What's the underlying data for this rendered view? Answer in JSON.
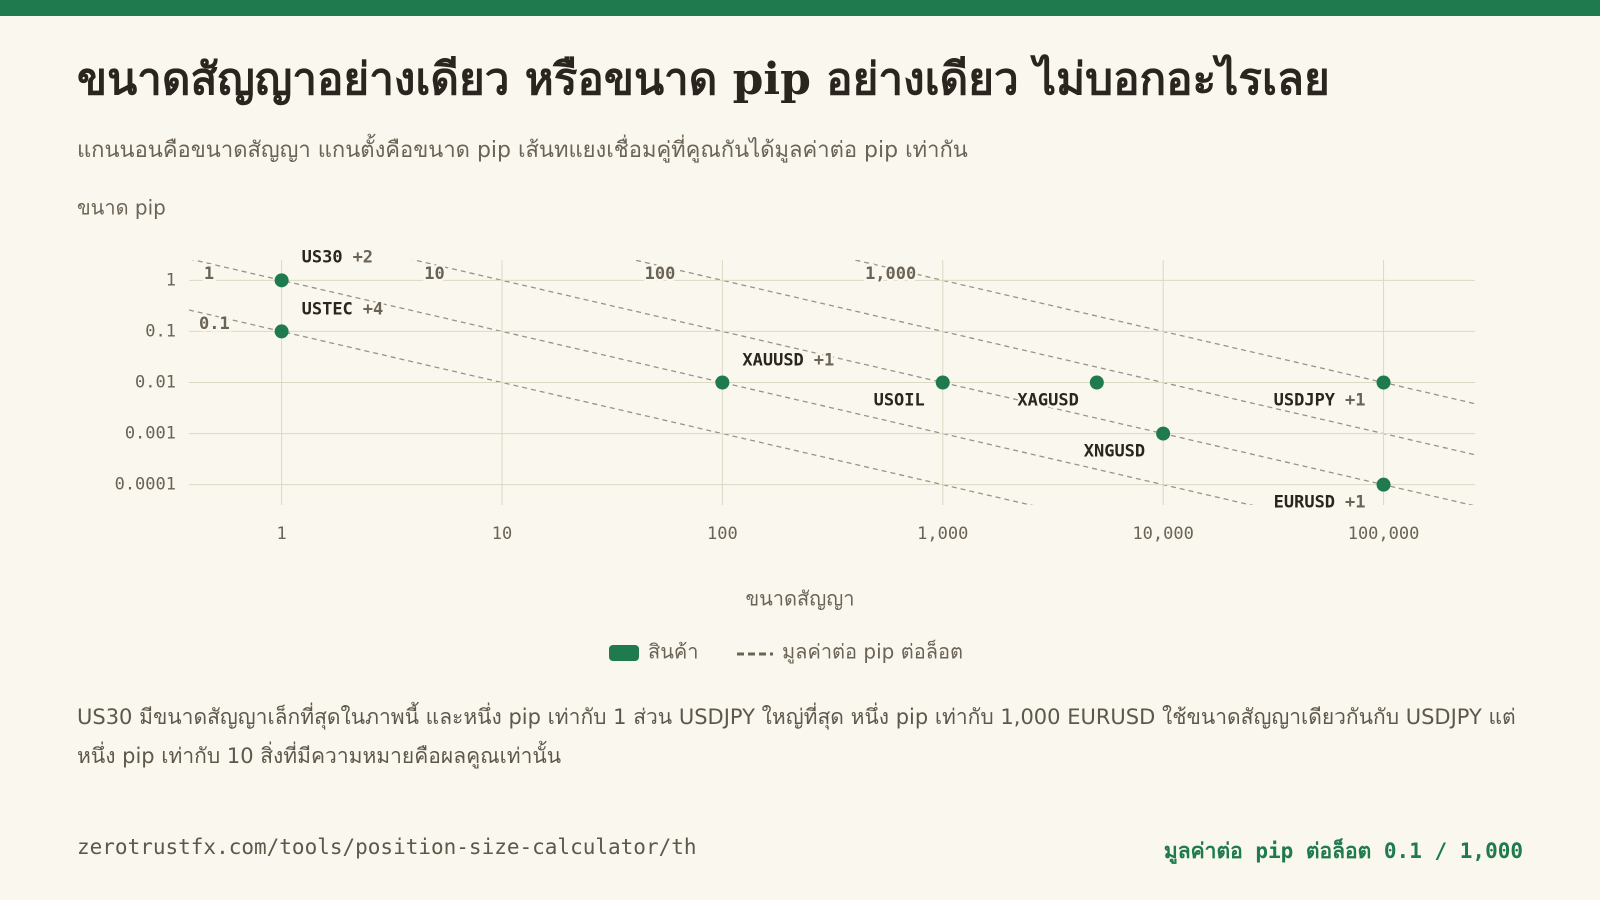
{
  "title": "ขนาดสัญญาอย่างเดียว หรือขนาด pip อย่างเดียว ไม่บอกอะไรเลย",
  "subtitle": "แกนนอนคือขนาดสัญญา แกนตั้งคือขนาด pip เส้นทแยงเชื่อมคู่ที่คูณกันได้มูลค่าต่อ pip เท่ากัน",
  "chart_data": {
    "type": "scatter",
    "log_x": true,
    "log_y": true,
    "grid": true,
    "y_label": "ขนาด pip",
    "x_label": "ขนาดสัญญา",
    "xlim": [
      0.38,
      260000
    ],
    "ylim": [
      4e-05,
      2.5
    ],
    "xticks": [
      1,
      10,
      100,
      {
        "value": 1000,
        "label": "1,000"
      },
      {
        "value": 10000,
        "label": "10,000"
      },
      {
        "value": 100000,
        "label": "100,000"
      }
    ],
    "yticks": [
      1,
      0.1,
      0.01,
      0.001,
      0.0001
    ],
    "series": [
      {
        "name": "สินค้า",
        "color": "#1f7a4d",
        "labels": [
          "US30",
          "USTEC",
          "XAUUSD",
          "USOIL",
          "XAGUSD",
          "XNGUSD",
          "USDJPY",
          "EURUSD"
        ],
        "badges": [
          "+2",
          "+4",
          "+1",
          null,
          null,
          null,
          "+1",
          "+1"
        ],
        "x": [
          1,
          1,
          100,
          1000,
          5000,
          10000,
          100000,
          100000
        ],
        "values": [
          1,
          0.1,
          0.01,
          0.01,
          0.01,
          0.001,
          0.01,
          0.0001
        ]
      }
    ],
    "reference_lines": {
      "name": "มูลค่าต่อ pip ต่อล็อต",
      "color": "#999488",
      "values": [
        0.1,
        1,
        10,
        100,
        1000
      ],
      "value_labels": [
        "0.1",
        "1",
        "10",
        "100",
        "1,000"
      ]
    }
  },
  "note": "US30 มีขนาดสัญญาเล็กที่สุดในภาพนี้ และหนึ่ง pip เท่ากับ 1 ส่วน USDJPY ใหญ่ที่สุด หนึ่ง pip เท่ากับ 1,000 EURUSD ใช้ขนาดสัญญาเดียวกันกับ USDJPY แต่หนึ่ง pip เท่ากับ 10 สิ่งที่มีความหมายคือผลคูณเท่านั้น",
  "footer": {
    "url": "zerotrustfx.com/tools/position-size-calculator/th",
    "summary": "มูลค่าต่อ pip ต่อล็อต 0.1 / 1,000"
  }
}
